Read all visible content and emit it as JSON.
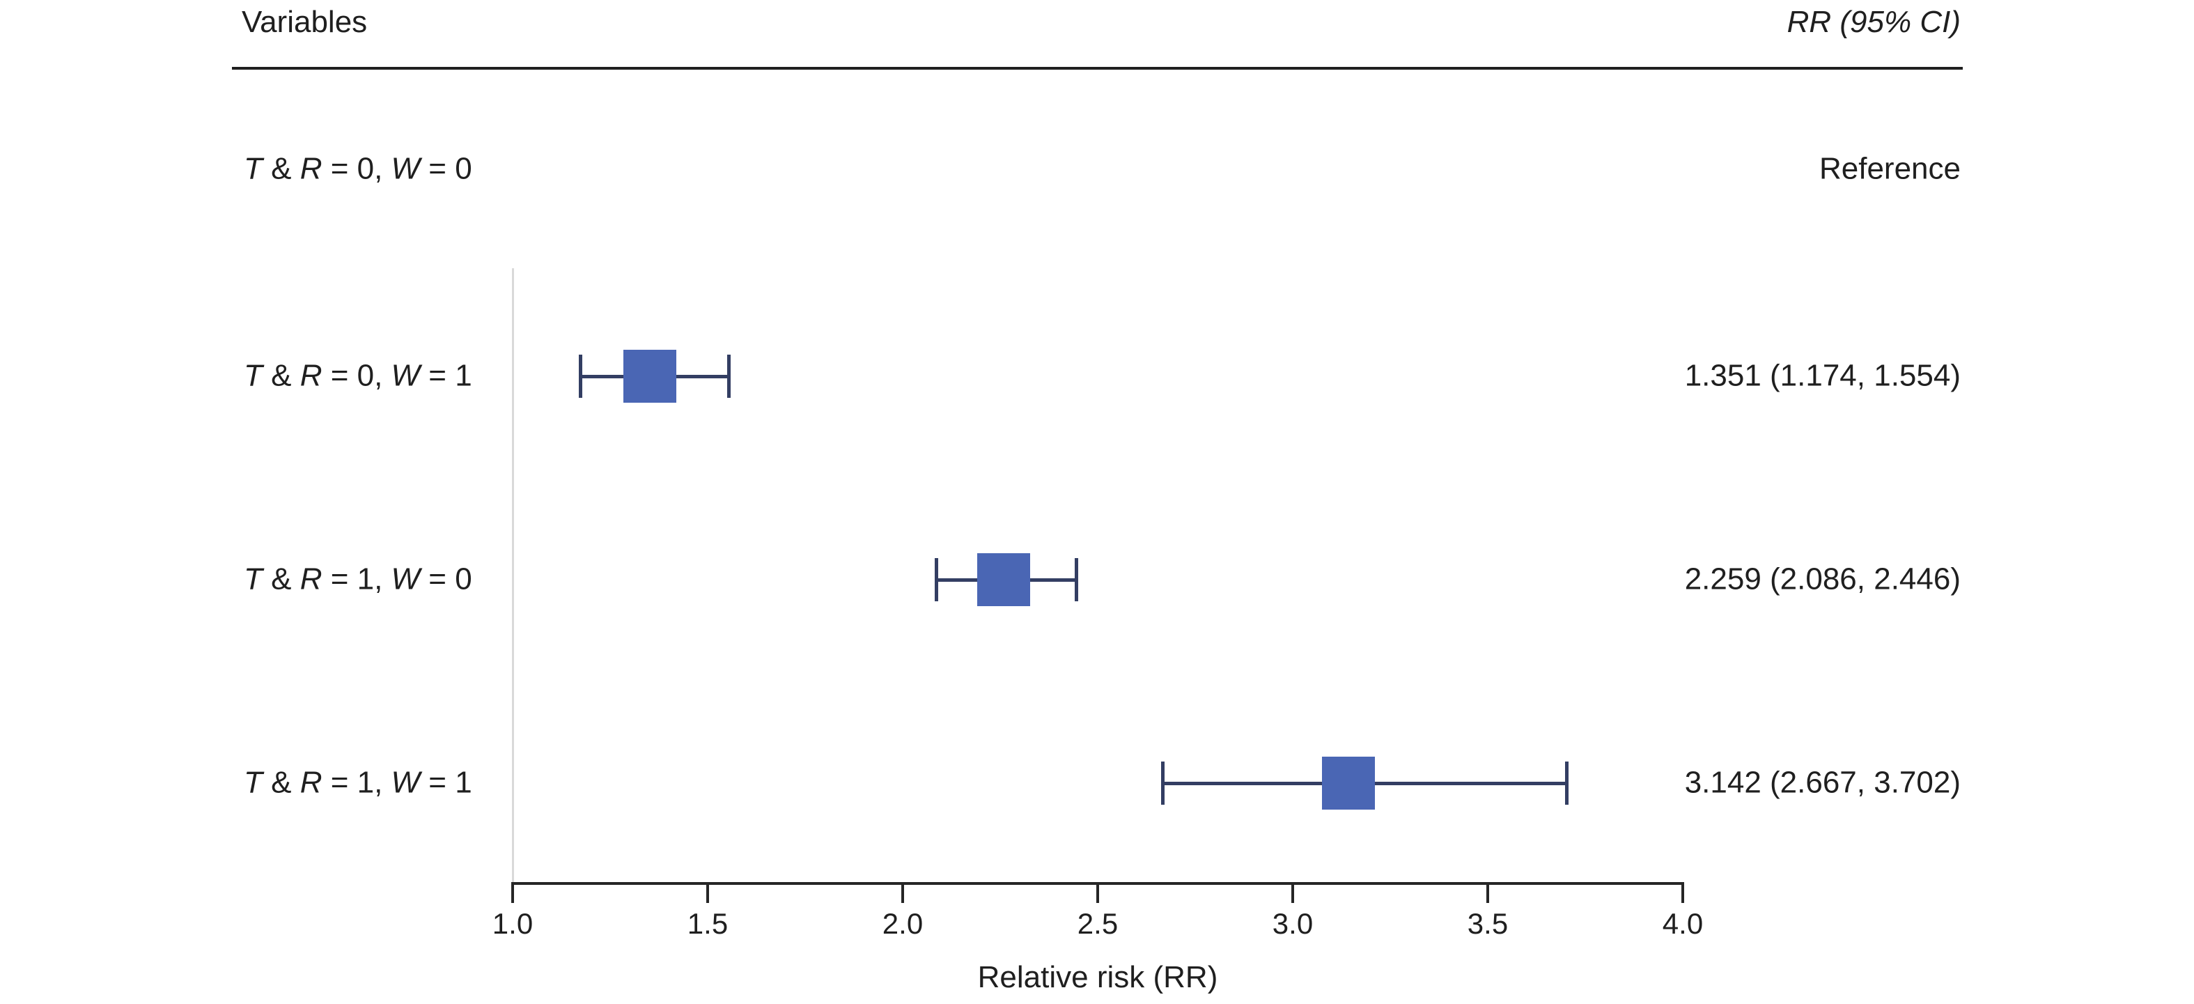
{
  "header": {
    "variables_label": "Variables",
    "rr_label": "RR (95% CI)"
  },
  "chart_data": {
    "type": "forest",
    "xlabel": "Relative risk (RR)",
    "xlim": [
      1.0,
      4.0
    ],
    "x_ticks": [
      1.0,
      1.5,
      2.0,
      2.5,
      3.0,
      3.5,
      4.0
    ],
    "x_tick_labels": [
      "1.0",
      "1.5",
      "2.0",
      "2.5",
      "3.0",
      "3.5",
      "4.0"
    ],
    "grid": "off",
    "legend": "none",
    "rows": [
      {
        "label": "T & R = 0, W = 0",
        "label_parts": [
          {
            "t": "T",
            "i": true
          },
          {
            "t": " & ",
            "i": false
          },
          {
            "t": "R",
            "i": true
          },
          {
            "t": " = 0, ",
            "i": false
          },
          {
            "t": "W",
            "i": true
          },
          {
            "t": " = 0",
            "i": false
          }
        ],
        "rr": null,
        "ci_low": null,
        "ci_high": null,
        "rr_text": "Reference"
      },
      {
        "label": "T & R = 0, W = 1",
        "label_parts": [
          {
            "t": "T",
            "i": true
          },
          {
            "t": " & ",
            "i": false
          },
          {
            "t": "R",
            "i": true
          },
          {
            "t": " = 0, ",
            "i": false
          },
          {
            "t": "W",
            "i": true
          },
          {
            "t": " = 1",
            "i": false
          }
        ],
        "rr": 1.351,
        "ci_low": 1.174,
        "ci_high": 1.554,
        "rr_text": "1.351 (1.174, 1.554)"
      },
      {
        "label": "T & R = 1, W = 0",
        "label_parts": [
          {
            "t": "T",
            "i": true
          },
          {
            "t": " & ",
            "i": false
          },
          {
            "t": "R",
            "i": true
          },
          {
            "t": " = 1, ",
            "i": false
          },
          {
            "t": "W",
            "i": true
          },
          {
            "t": " = 0",
            "i": false
          }
        ],
        "rr": 2.259,
        "ci_low": 2.086,
        "ci_high": 2.446,
        "rr_text": "2.259 (2.086, 2.446)"
      },
      {
        "label": "T & R = 1, W = 1",
        "label_parts": [
          {
            "t": "T",
            "i": true
          },
          {
            "t": " & ",
            "i": false
          },
          {
            "t": "R",
            "i": true
          },
          {
            "t": " = 1, ",
            "i": false
          },
          {
            "t": "W",
            "i": true
          },
          {
            "t": " = 1",
            "i": false
          }
        ],
        "rr": 3.142,
        "ci_low": 2.667,
        "ci_high": 3.702,
        "rr_text": "3.142 (2.667, 3.702)"
      }
    ],
    "colors": {
      "box": "#4a66b4",
      "whisker": "#333e63",
      "axis": "#262626",
      "reference_line": "#d9d9d9",
      "text": "#1f1f1f"
    }
  }
}
